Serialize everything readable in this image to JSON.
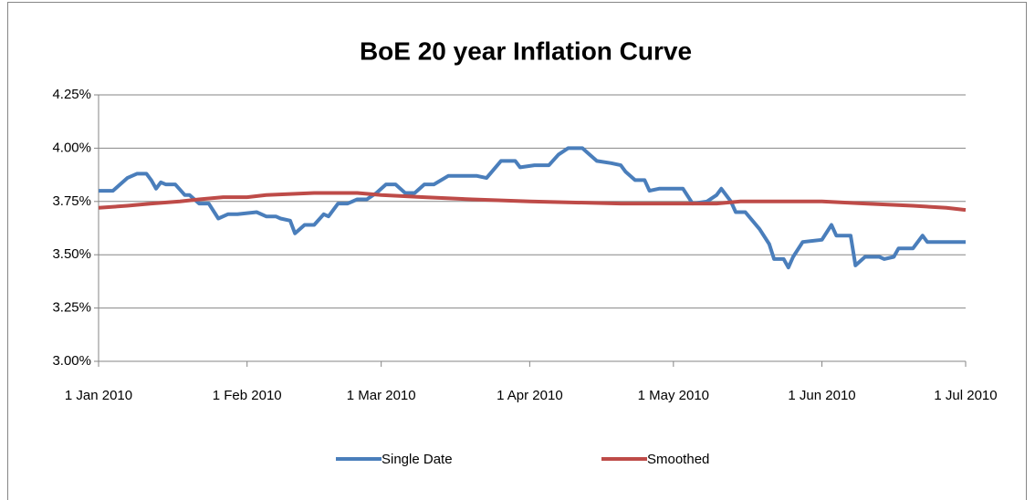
{
  "chart_data": {
    "type": "line",
    "title": "BoE 20 year Inflation Curve",
    "xlim": [
      "2010-01-01",
      "2010-07-01"
    ],
    "xticks": [
      {
        "value": "2010-01-01",
        "label": "1 Jan 2010"
      },
      {
        "value": "2010-02-01",
        "label": "1 Feb 2010"
      },
      {
        "value": "2010-03-01",
        "label": "1 Mar 2010"
      },
      {
        "value": "2010-04-01",
        "label": "1 Apr 2010"
      },
      {
        "value": "2010-05-01",
        "label": "1 May 2010"
      },
      {
        "value": "2010-06-01",
        "label": "1 Jun 2010"
      },
      {
        "value": "2010-07-01",
        "label": "1 Jul 2010"
      }
    ],
    "ylim": [
      3,
      4.25
    ],
    "yticks": [
      {
        "value": 3,
        "label": "3.00%"
      },
      {
        "value": 3.25,
        "label": "3.25%"
      },
      {
        "value": 3.5,
        "label": "3.50%"
      },
      {
        "value": 3.75,
        "label": "3.75%"
      },
      {
        "value": 4,
        "label": "4.00%"
      },
      {
        "value": 4.25,
        "label": "4.25%"
      }
    ],
    "grid": true,
    "legend": "bottom",
    "series": [
      {
        "name": "Single Date",
        "color": "#4a7ebb",
        "x": [
          "2010-01-01",
          "2010-01-04",
          "2010-01-07",
          "2010-01-09",
          "2010-01-11",
          "2010-01-12",
          "2010-01-13",
          "2010-01-14",
          "2010-01-15",
          "2010-01-17",
          "2010-01-19",
          "2010-01-20",
          "2010-01-22",
          "2010-01-24",
          "2010-01-26",
          "2010-01-28",
          "2010-01-30",
          "2010-02-03",
          "2010-02-05",
          "2010-02-07",
          "2010-02-08",
          "2010-02-10",
          "2010-02-11",
          "2010-02-13",
          "2010-02-15",
          "2010-02-17",
          "2010-02-18",
          "2010-02-20",
          "2010-02-22",
          "2010-02-24",
          "2010-02-26",
          "2010-02-28",
          "2010-03-02",
          "2010-03-04",
          "2010-03-06",
          "2010-03-08",
          "2010-03-10",
          "2010-03-12",
          "2010-03-15",
          "2010-03-21",
          "2010-03-23",
          "2010-03-26",
          "2010-03-29",
          "2010-03-30",
          "2010-04-02",
          "2010-04-05",
          "2010-04-07",
          "2010-04-09",
          "2010-04-12",
          "2010-04-13",
          "2010-04-15",
          "2010-04-18",
          "2010-04-20",
          "2010-04-21",
          "2010-04-23",
          "2010-04-25",
          "2010-04-26",
          "2010-04-28",
          "2010-05-03",
          "2010-05-05",
          "2010-05-08",
          "2010-05-10",
          "2010-05-11",
          "2010-05-13",
          "2010-05-14",
          "2010-05-16",
          "2010-05-19",
          "2010-05-21",
          "2010-05-22",
          "2010-05-24",
          "2010-05-25",
          "2010-05-26",
          "2010-05-28",
          "2010-06-01",
          "2010-06-03",
          "2010-06-04",
          "2010-06-07",
          "2010-06-08",
          "2010-06-10",
          "2010-06-13",
          "2010-06-14",
          "2010-06-16",
          "2010-06-17",
          "2010-06-20",
          "2010-06-22",
          "2010-06-23",
          "2010-06-25",
          "2010-07-01"
        ],
        "values": [
          3.8,
          3.8,
          3.86,
          3.88,
          3.88,
          3.85,
          3.81,
          3.84,
          3.83,
          3.83,
          3.78,
          3.78,
          3.74,
          3.74,
          3.67,
          3.69,
          3.69,
          3.7,
          3.68,
          3.68,
          3.67,
          3.66,
          3.6,
          3.64,
          3.64,
          3.69,
          3.68,
          3.74,
          3.74,
          3.76,
          3.76,
          3.79,
          3.83,
          3.83,
          3.79,
          3.79,
          3.83,
          3.83,
          3.87,
          3.87,
          3.86,
          3.94,
          3.94,
          3.91,
          3.92,
          3.92,
          3.97,
          4.0,
          4.0,
          3.98,
          3.94,
          3.93,
          3.92,
          3.89,
          3.85,
          3.85,
          3.8,
          3.81,
          3.81,
          3.74,
          3.75,
          3.78,
          3.81,
          3.75,
          3.7,
          3.7,
          3.62,
          3.55,
          3.48,
          3.48,
          3.44,
          3.49,
          3.56,
          3.57,
          3.64,
          3.59,
          3.59,
          3.45,
          3.49,
          3.49,
          3.48,
          3.49,
          3.53,
          3.53,
          3.59,
          3.56,
          3.56,
          3.56
        ]
      },
      {
        "name": "Smoothed",
        "color": "#be4b48",
        "x": [
          "2010-01-01",
          "2010-01-07",
          "2010-01-12",
          "2010-01-18",
          "2010-01-22",
          "2010-01-27",
          "2010-02-01",
          "2010-02-05",
          "2010-02-15",
          "2010-02-24",
          "2010-03-01",
          "2010-03-10",
          "2010-03-20",
          "2010-04-01",
          "2010-04-20",
          "2010-05-10",
          "2010-05-15",
          "2010-06-01",
          "2010-06-10",
          "2010-06-20",
          "2010-06-27",
          "2010-07-01"
        ],
        "values": [
          3.72,
          3.73,
          3.74,
          3.75,
          3.76,
          3.77,
          3.77,
          3.78,
          3.79,
          3.79,
          3.78,
          3.77,
          3.76,
          3.75,
          3.74,
          3.74,
          3.75,
          3.75,
          3.74,
          3.73,
          3.72,
          3.71
        ]
      }
    ]
  }
}
